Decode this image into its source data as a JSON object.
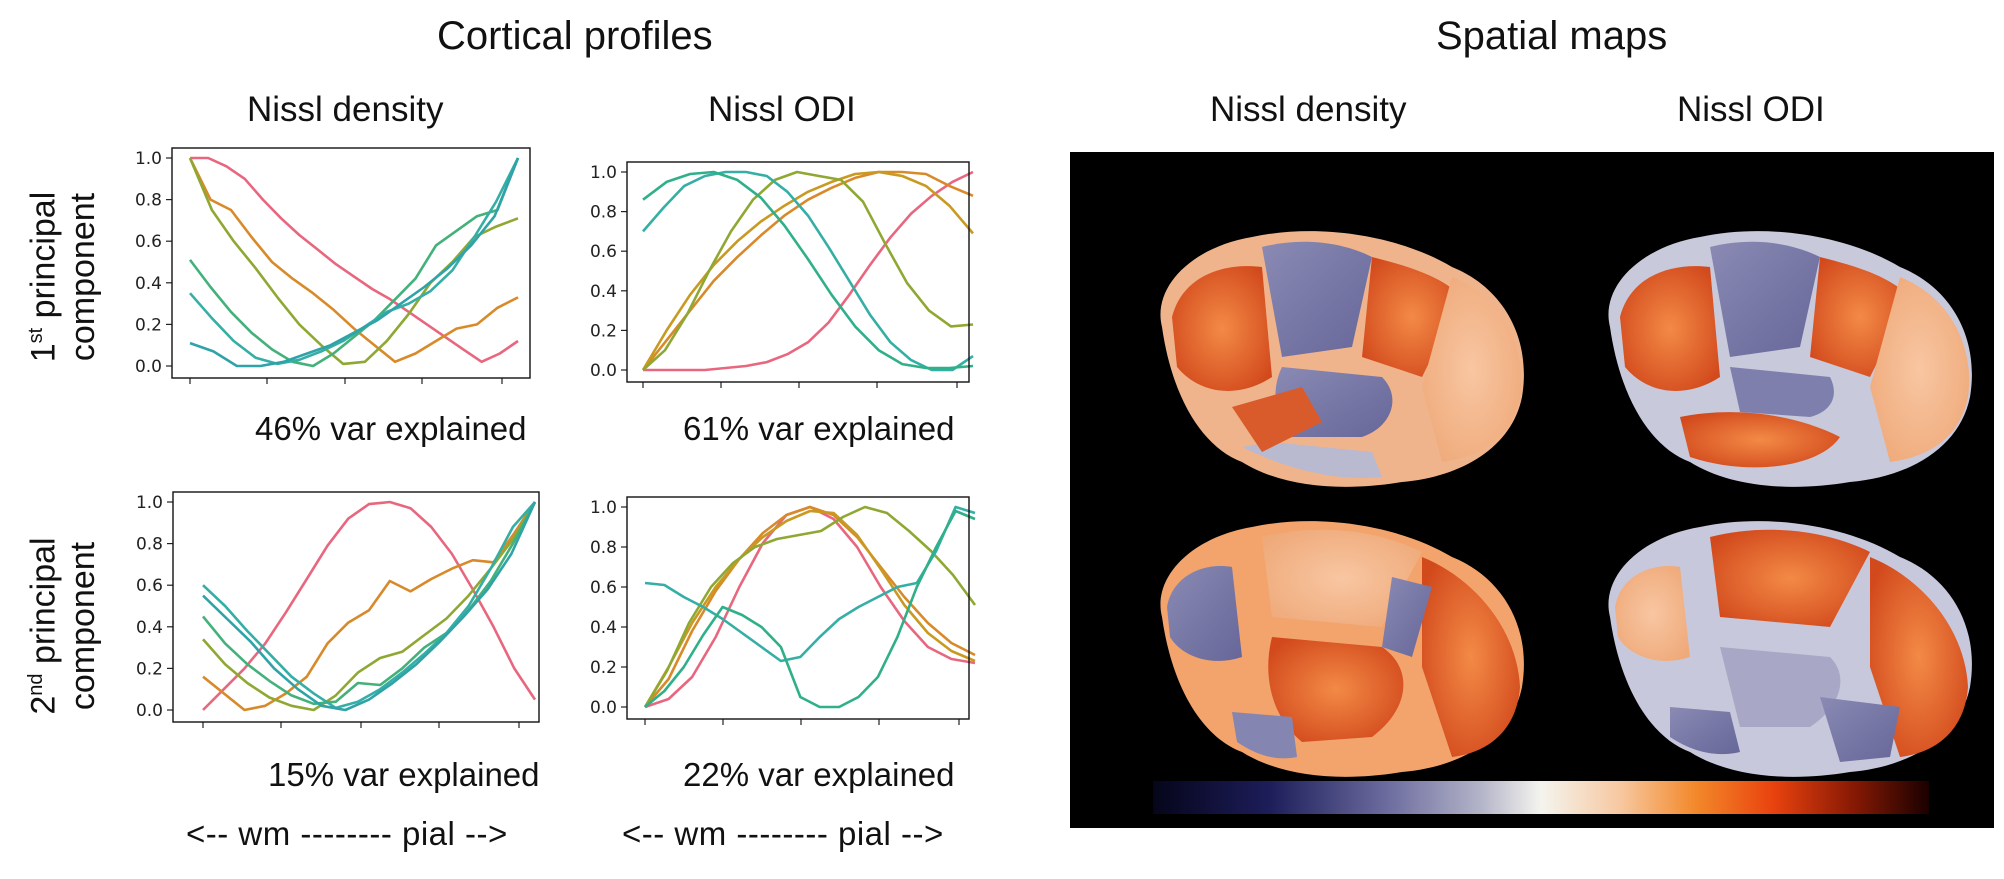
{
  "headings": {
    "cortical_profiles": "Cortical profiles",
    "spatial_maps": "Spatial maps"
  },
  "columns": {
    "nissl_density": "Nissl density",
    "nissl_odi": "Nissl ODI"
  },
  "rows": {
    "first": {
      "ordinal": "1",
      "suffix": "st",
      "line1": " principal",
      "line2": "component"
    },
    "second": {
      "ordinal": "2",
      "suffix": "nd",
      "line1": " principal",
      "line2": "component"
    }
  },
  "var_explained": {
    "pc1_density": "46% var explained",
    "pc1_odi": "61% var explained",
    "pc2_density": "15% var explained",
    "pc2_odi": "22% var explained"
  },
  "axis_direction_label": "<-- wm -------- pial -->",
  "colors": {
    "pink": "#e8677f",
    "orange": "#d88a2a",
    "olive": "#8fa833",
    "green": "#44b07a",
    "teal": "#35aea6"
  },
  "chart_data": [
    {
      "id": "pc1_density",
      "type": "line",
      "title": "Nissl density",
      "subtitle": "46% var explained",
      "xlabel": "<-- wm -------- pial -->",
      "ylabel": "1st principal component",
      "ylim": [
        0,
        1
      ],
      "yticks": [
        "0.0",
        "0.2",
        "0.4",
        "0.6",
        "0.8",
        "1.0"
      ],
      "series": [
        {
          "name": "pink",
          "color": "#e8677f",
          "values": [
            1.0,
            1.0,
            0.96,
            0.9,
            0.8,
            0.71,
            0.63,
            0.56,
            0.49,
            0.43,
            0.37,
            0.32,
            0.26,
            0.2,
            0.14,
            0.08,
            0.02,
            0.06,
            0.12
          ]
        },
        {
          "name": "orange",
          "color": "#d88a2a",
          "values": [
            1.0,
            0.8,
            0.75,
            0.62,
            0.5,
            0.42,
            0.35,
            0.27,
            0.18,
            0.1,
            0.02,
            0.06,
            0.12,
            0.18,
            0.2,
            0.28,
            0.33
          ]
        },
        {
          "name": "olive",
          "color": "#8fa833",
          "values": [
            1.0,
            0.75,
            0.6,
            0.47,
            0.33,
            0.2,
            0.1,
            0.01,
            0.02,
            0.12,
            0.25,
            0.4,
            0.5,
            0.62,
            0.67,
            0.71
          ]
        },
        {
          "name": "green",
          "color": "#44b07a",
          "values": [
            0.51,
            0.38,
            0.26,
            0.16,
            0.08,
            0.02,
            0.0,
            0.06,
            0.14,
            0.22,
            0.32,
            0.42,
            0.58,
            0.65,
            0.72,
            0.75,
            1.0
          ]
        },
        {
          "name": "teal",
          "color": "#35aea6",
          "values": [
            0.35,
            0.23,
            0.12,
            0.04,
            0.01,
            0.03,
            0.07,
            0.12,
            0.19,
            0.26,
            0.3,
            0.36,
            0.46,
            0.62,
            0.79,
            1.0
          ]
        },
        {
          "name": "teal2",
          "color": "#2fa3a8",
          "values": [
            0.11,
            0.07,
            0.0,
            0.0,
            0.02,
            0.06,
            0.1,
            0.16,
            0.22,
            0.3,
            0.38,
            0.47,
            0.58,
            0.72,
            1.0
          ]
        }
      ]
    },
    {
      "id": "pc1_odi",
      "type": "line",
      "title": "Nissl ODI",
      "subtitle": "61% var explained",
      "xlabel": "<-- wm -------- pial -->",
      "ylim": [
        0,
        1
      ],
      "yticks": [
        "0.0",
        "0.2",
        "0.4",
        "0.6",
        "0.8",
        "1.0"
      ],
      "series": [
        {
          "name": "pink",
          "color": "#e8677f",
          "values": [
            0.0,
            0.0,
            0.0,
            0.0,
            0.01,
            0.02,
            0.04,
            0.08,
            0.14,
            0.24,
            0.38,
            0.53,
            0.67,
            0.79,
            0.88,
            0.95,
            1.0
          ]
        },
        {
          "name": "orange",
          "color": "#d88a2a",
          "values": [
            0.0,
            0.15,
            0.3,
            0.45,
            0.57,
            0.68,
            0.78,
            0.86,
            0.92,
            0.97,
            1.0,
            1.0,
            0.99,
            0.93,
            0.88
          ]
        },
        {
          "name": "orange2",
          "color": "#c99a22",
          "values": [
            0.0,
            0.2,
            0.38,
            0.53,
            0.65,
            0.75,
            0.83,
            0.9,
            0.95,
            0.99,
            1.0,
            0.98,
            0.93,
            0.83,
            0.69
          ]
        },
        {
          "name": "olive",
          "color": "#8fa833",
          "values": [
            0.0,
            0.1,
            0.28,
            0.5,
            0.7,
            0.86,
            0.96,
            1.0,
            0.98,
            0.96,
            0.85,
            0.64,
            0.44,
            0.3,
            0.22,
            0.23
          ]
        },
        {
          "name": "teal",
          "color": "#35aea6",
          "values": [
            0.7,
            0.82,
            0.93,
            0.98,
            1.0,
            1.0,
            0.98,
            0.9,
            0.78,
            0.62,
            0.45,
            0.28,
            0.14,
            0.05,
            0.0,
            0.0,
            0.07
          ]
        },
        {
          "name": "green",
          "color": "#2fb089",
          "values": [
            0.86,
            0.95,
            0.99,
            1.0,
            0.96,
            0.87,
            0.73,
            0.56,
            0.38,
            0.22,
            0.1,
            0.03,
            0.01,
            0.01,
            0.02
          ]
        }
      ]
    },
    {
      "id": "pc2_density",
      "type": "line",
      "title": "",
      "subtitle": "15% var explained",
      "xlabel": "<-- wm -------- pial -->",
      "ylabel": "2nd principal component",
      "ylim": [
        0,
        1
      ],
      "yticks": [
        "0.0",
        "0.2",
        "0.4",
        "0.6",
        "0.8",
        "1.0"
      ],
      "series": [
        {
          "name": "pink",
          "color": "#e8677f",
          "values": [
            0.0,
            0.1,
            0.2,
            0.32,
            0.47,
            0.63,
            0.79,
            0.92,
            0.99,
            1.0,
            0.97,
            0.88,
            0.75,
            0.58,
            0.4,
            0.2,
            0.05
          ]
        },
        {
          "name": "orange",
          "color": "#d88a2a",
          "values": [
            0.16,
            0.08,
            0.0,
            0.02,
            0.08,
            0.16,
            0.32,
            0.42,
            0.48,
            0.62,
            0.57,
            0.63,
            0.68,
            0.72,
            0.71,
            0.85,
            1.0
          ]
        },
        {
          "name": "olive",
          "color": "#8fa833",
          "values": [
            0.34,
            0.22,
            0.13,
            0.06,
            0.02,
            0.0,
            0.07,
            0.18,
            0.25,
            0.28,
            0.36,
            0.44,
            0.55,
            0.68,
            0.82,
            1.0
          ]
        },
        {
          "name": "green",
          "color": "#44b07a",
          "values": [
            0.45,
            0.32,
            0.22,
            0.14,
            0.07,
            0.03,
            0.04,
            0.13,
            0.12,
            0.2,
            0.3,
            0.37,
            0.48,
            0.62,
            0.8,
            1.0
          ]
        },
        {
          "name": "teal",
          "color": "#35aea6",
          "values": [
            0.6,
            0.5,
            0.38,
            0.27,
            0.16,
            0.08,
            0.01,
            0.04,
            0.1,
            0.18,
            0.27,
            0.37,
            0.5,
            0.68,
            0.88,
            1.0
          ]
        },
        {
          "name": "teal2",
          "color": "#2fa3a8",
          "values": [
            0.55,
            0.44,
            0.33,
            0.2,
            0.1,
            0.02,
            0.0,
            0.05,
            0.13,
            0.22,
            0.33,
            0.45,
            0.58,
            0.75,
            1.0
          ]
        }
      ]
    },
    {
      "id": "pc2_odi",
      "type": "line",
      "title": "",
      "subtitle": "22% var explained",
      "xlabel": "<-- wm -------- pial -->",
      "ylim": [
        0,
        1
      ],
      "yticks": [
        "0.0",
        "0.2",
        "0.4",
        "0.6",
        "0.8",
        "1.0"
      ],
      "series": [
        {
          "name": "pink",
          "color": "#e8677f",
          "values": [
            0.0,
            0.04,
            0.15,
            0.35,
            0.6,
            0.82,
            0.96,
            1.0,
            0.94,
            0.8,
            0.6,
            0.43,
            0.3,
            0.24,
            0.22
          ]
        },
        {
          "name": "orange",
          "color": "#d88a2a",
          "values": [
            0.0,
            0.14,
            0.38,
            0.58,
            0.74,
            0.87,
            0.96,
            1.0,
            0.96,
            0.85,
            0.7,
            0.55,
            0.42,
            0.32,
            0.26
          ]
        },
        {
          "name": "olive",
          "color": "#c99a22",
          "values": [
            0.0,
            0.2,
            0.42,
            0.6,
            0.74,
            0.85,
            0.93,
            0.98,
            0.97,
            0.86,
            0.69,
            0.51,
            0.37,
            0.28,
            0.23
          ]
        },
        {
          "name": "green",
          "color": "#8fa833",
          "values": [
            0.0,
            0.18,
            0.42,
            0.6,
            0.72,
            0.8,
            0.84,
            0.86,
            0.88,
            0.95,
            1.0,
            0.97,
            0.88,
            0.78,
            0.66,
            0.51
          ]
        },
        {
          "name": "teal",
          "color": "#35aea6",
          "values": [
            0.62,
            0.61,
            0.55,
            0.5,
            0.44,
            0.37,
            0.3,
            0.23,
            0.25,
            0.35,
            0.44,
            0.5,
            0.55,
            0.6,
            0.62,
            0.78,
            1.0,
            0.97
          ]
        },
        {
          "name": "teal2",
          "color": "#2fb089",
          "values": [
            0.0,
            0.08,
            0.2,
            0.36,
            0.5,
            0.46,
            0.4,
            0.3,
            0.05,
            0.0,
            0.0,
            0.05,
            0.15,
            0.35,
            0.6,
            0.8,
            0.98,
            0.94
          ]
        }
      ]
    }
  ]
}
